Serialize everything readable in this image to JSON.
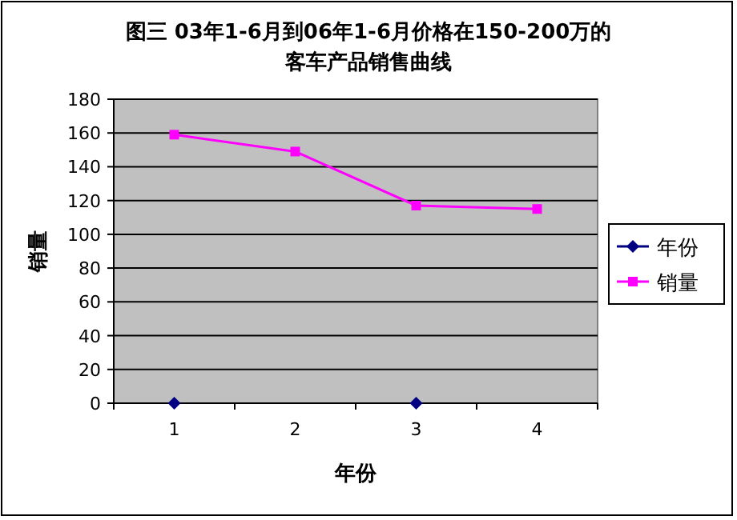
{
  "chart_data": {
    "type": "line",
    "title": "图三 03年1-6月到06年1-6月价格在150-200万的客车产品销售曲线",
    "xlabel": "年份",
    "ylabel": "销量",
    "categories": [
      "1",
      "2",
      "3",
      "4"
    ],
    "ylim": [
      0,
      180
    ],
    "yticks": [
      0,
      20,
      40,
      60,
      80,
      100,
      120,
      140,
      160,
      180
    ],
    "grid": "y",
    "legend": "right",
    "series": [
      {
        "name": "年份",
        "type": "scatter",
        "color": "#000080",
        "marker": "diamond",
        "values": [
          0,
          null,
          0,
          null
        ]
      },
      {
        "name": "销量",
        "color": "#ff00ff",
        "marker": "square",
        "values": [
          159,
          149,
          117,
          115
        ]
      }
    ]
  }
}
